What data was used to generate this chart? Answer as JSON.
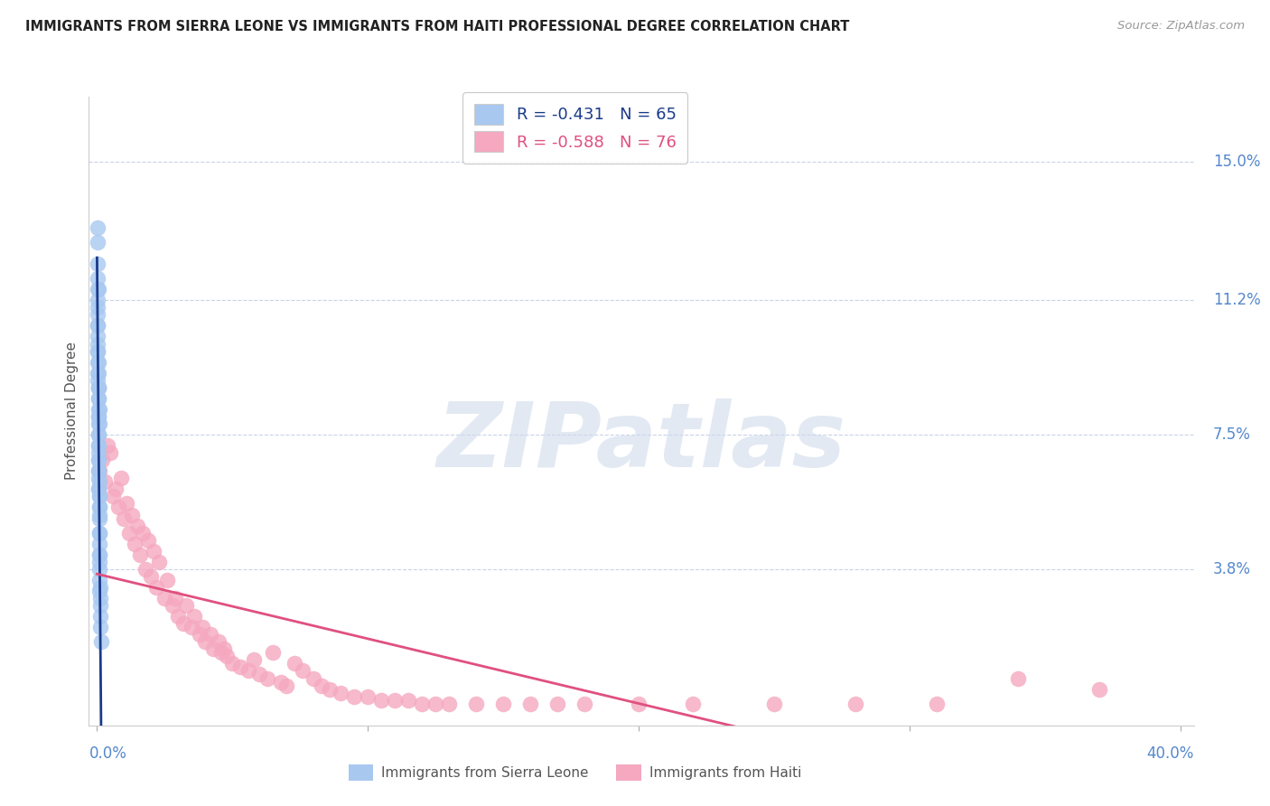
{
  "title": "IMMIGRANTS FROM SIERRA LEONE VS IMMIGRANTS FROM HAITI PROFESSIONAL DEGREE CORRELATION CHART",
  "source": "Source: ZipAtlas.com",
  "ylabel": "Professional Degree",
  "ytick_labels": [
    "15.0%",
    "11.2%",
    "7.5%",
    "3.8%"
  ],
  "ytick_values": [
    0.15,
    0.112,
    0.075,
    0.038
  ],
  "xlim": [
    -0.003,
    0.405
  ],
  "ylim": [
    -0.005,
    0.168
  ],
  "watermark_text": "ZIPatlas",
  "legend_r_sierra": "-0.431",
  "legend_n_sierra": "65",
  "legend_r_haiti": "-0.588",
  "legend_n_haiti": "76",
  "sierra_leone_color": "#a8c8f0",
  "haiti_color": "#f5a8c0",
  "sierra_leone_line_color": "#1a3a8a",
  "haiti_line_color": "#e05080",
  "background_color": "#ffffff",
  "grid_color": "#c8d4e8",
  "title_color": "#222222",
  "right_label_color": "#5588cc",
  "bottom_label_color": "#5588cc",
  "sl_x": [
    0.0002,
    0.0005,
    0.0003,
    0.0008,
    0.0004,
    0.0006,
    0.0001,
    0.0007,
    0.0003,
    0.0005,
    0.0009,
    0.0002,
    0.0006,
    0.0004,
    0.0008,
    0.0003,
    0.0005,
    0.0007,
    0.0002,
    0.0004,
    0.0006,
    0.0001,
    0.0008,
    0.0003,
    0.0005,
    0.001,
    0.0002,
    0.0007,
    0.0004,
    0.0009,
    0.0003,
    0.0006,
    0.0008,
    0.0002,
    0.0005,
    0.0011,
    0.0004,
    0.0007,
    0.0003,
    0.0006,
    0.0009,
    0.0002,
    0.0005,
    0.0008,
    0.0004,
    0.0012,
    0.0006,
    0.0003,
    0.0007,
    0.0005,
    0.0013,
    0.0004,
    0.0006,
    0.0009,
    0.0002,
    0.0007,
    0.0011,
    0.0005,
    0.0008,
    0.0003,
    0.0015,
    0.0006,
    0.001,
    0.0004,
    0.0012
  ],
  "sl_y": [
    0.122,
    0.095,
    0.105,
    0.082,
    0.115,
    0.088,
    0.132,
    0.078,
    0.098,
    0.068,
    0.062,
    0.11,
    0.072,
    0.092,
    0.055,
    0.102,
    0.08,
    0.058,
    0.118,
    0.085,
    0.065,
    0.128,
    0.048,
    0.09,
    0.075,
    0.042,
    0.112,
    0.052,
    0.082,
    0.038,
    0.095,
    0.06,
    0.045,
    0.108,
    0.07,
    0.033,
    0.088,
    0.055,
    0.1,
    0.063,
    0.04,
    0.115,
    0.075,
    0.048,
    0.085,
    0.028,
    0.068,
    0.092,
    0.053,
    0.078,
    0.022,
    0.08,
    0.065,
    0.035,
    0.105,
    0.058,
    0.03,
    0.072,
    0.042,
    0.098,
    0.018,
    0.06,
    0.032,
    0.088,
    0.025
  ],
  "h_x": [
    0.001,
    0.002,
    0.003,
    0.005,
    0.006,
    0.004,
    0.008,
    0.007,
    0.01,
    0.012,
    0.009,
    0.014,
    0.011,
    0.016,
    0.018,
    0.015,
    0.02,
    0.013,
    0.022,
    0.025,
    0.019,
    0.028,
    0.023,
    0.03,
    0.017,
    0.032,
    0.026,
    0.035,
    0.021,
    0.038,
    0.029,
    0.04,
    0.033,
    0.043,
    0.036,
    0.046,
    0.039,
    0.048,
    0.042,
    0.05,
    0.045,
    0.053,
    0.047,
    0.056,
    0.06,
    0.063,
    0.065,
    0.058,
    0.068,
    0.07,
    0.073,
    0.076,
    0.08,
    0.083,
    0.086,
    0.09,
    0.095,
    0.1,
    0.105,
    0.11,
    0.115,
    0.12,
    0.125,
    0.13,
    0.14,
    0.15,
    0.16,
    0.17,
    0.18,
    0.2,
    0.22,
    0.25,
    0.28,
    0.31,
    0.34,
    0.37
  ],
  "h_y": [
    0.065,
    0.068,
    0.062,
    0.07,
    0.058,
    0.072,
    0.055,
    0.06,
    0.052,
    0.048,
    0.063,
    0.045,
    0.056,
    0.042,
    0.038,
    0.05,
    0.036,
    0.053,
    0.033,
    0.03,
    0.046,
    0.028,
    0.04,
    0.025,
    0.048,
    0.023,
    0.035,
    0.022,
    0.043,
    0.02,
    0.03,
    0.018,
    0.028,
    0.016,
    0.025,
    0.015,
    0.022,
    0.014,
    0.02,
    0.012,
    0.018,
    0.011,
    0.016,
    0.01,
    0.009,
    0.008,
    0.015,
    0.013,
    0.007,
    0.006,
    0.012,
    0.01,
    0.008,
    0.006,
    0.005,
    0.004,
    0.003,
    0.003,
    0.002,
    0.002,
    0.002,
    0.001,
    0.001,
    0.001,
    0.001,
    0.001,
    0.001,
    0.001,
    0.001,
    0.001,
    0.001,
    0.001,
    0.001,
    0.001,
    0.008,
    0.005
  ]
}
